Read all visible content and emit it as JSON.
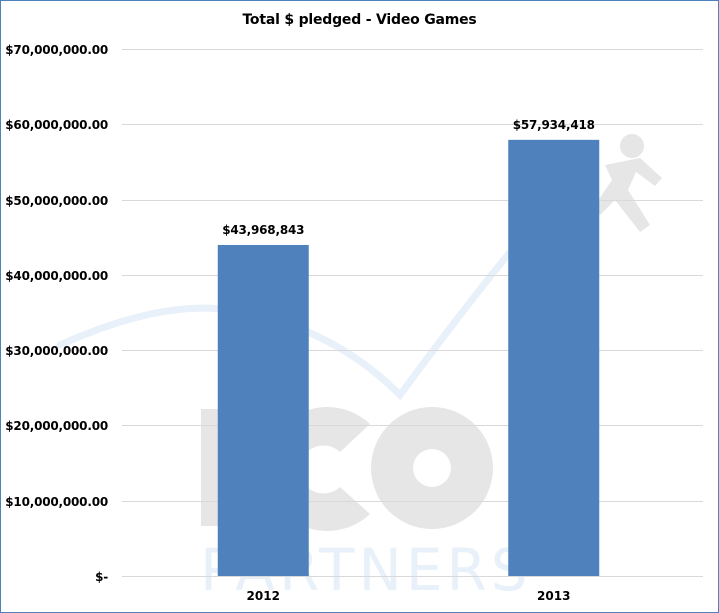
{
  "chart_data": {
    "type": "bar",
    "title": "Total $ pledged - Video Games",
    "xlabel": "",
    "ylabel": "",
    "categories": [
      "2012",
      "2013"
    ],
    "values": [
      43968843,
      57934418
    ],
    "data_labels": [
      "$43,968,843",
      "$57,934,418"
    ],
    "ylim": [
      0,
      70000000
    ],
    "yticks": [
      0,
      10000000,
      20000000,
      30000000,
      40000000,
      50000000,
      60000000,
      70000000
    ],
    "ytick_labels": [
      "$-",
      "$10,000,000.00",
      "$20,000,000.00",
      "$30,000,000.00",
      "$40,000,000.00",
      "$50,000,000.00",
      "$60,000,000.00",
      "$70,000,000.00"
    ],
    "grid": true,
    "legend": "none",
    "bar_color": "#4f81bd"
  },
  "colors": {
    "bar": "#4f81bd",
    "grid": "#d9d9d9",
    "border": "#4f81bd",
    "watermark_gray": "#e6e6e6",
    "watermark_blue": "#e8f1fa"
  },
  "watermark": {
    "logo_text": "ICO",
    "sub_text": "PARTNERS"
  }
}
